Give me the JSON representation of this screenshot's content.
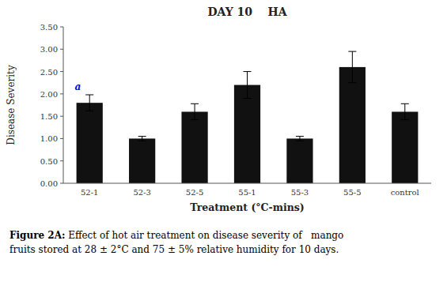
{
  "chart_data": {
    "type": "bar",
    "title": "DAY 10    HA",
    "x_label": "Treatment (°C-mins)",
    "y_label": "Disease Severity",
    "categories": [
      "52-1",
      "52-3",
      "52-5",
      "55-1",
      "55-3",
      "55-5",
      "control"
    ],
    "values": [
      1.8,
      1.0,
      1.6,
      2.2,
      1.0,
      2.6,
      1.6
    ],
    "errors": [
      0.18,
      0.05,
      0.18,
      0.3,
      0.05,
      0.35,
      0.18
    ],
    "color": "#111111",
    "ylim": [
      0,
      3.5
    ],
    "yticks": [
      {
        "value": 0,
        "label": "0.00"
      },
      {
        "value": 0.5,
        "label": "0.50"
      },
      {
        "value": 1,
        "label": "1.00"
      },
      {
        "value": 1.5,
        "label": "1.50"
      },
      {
        "value": 2,
        "label": "2.00"
      },
      {
        "value": 2.5,
        "label": "2.50"
      },
      {
        "value": 3,
        "label": "3.00"
      },
      {
        "value": 3.5,
        "label": "3.50"
      }
    ],
    "grid": false,
    "annotations": [
      {
        "text": "a",
        "index": 0,
        "color": "blue"
      }
    ],
    "caption": {
      "label": "Figure 2A:",
      "lines": [
        " Effect of hot air treatment on disease severity of   mango",
        "fruits stored at 28 ± 2°C and 75 ± 5% relative humidity for 10 days."
      ]
    }
  }
}
